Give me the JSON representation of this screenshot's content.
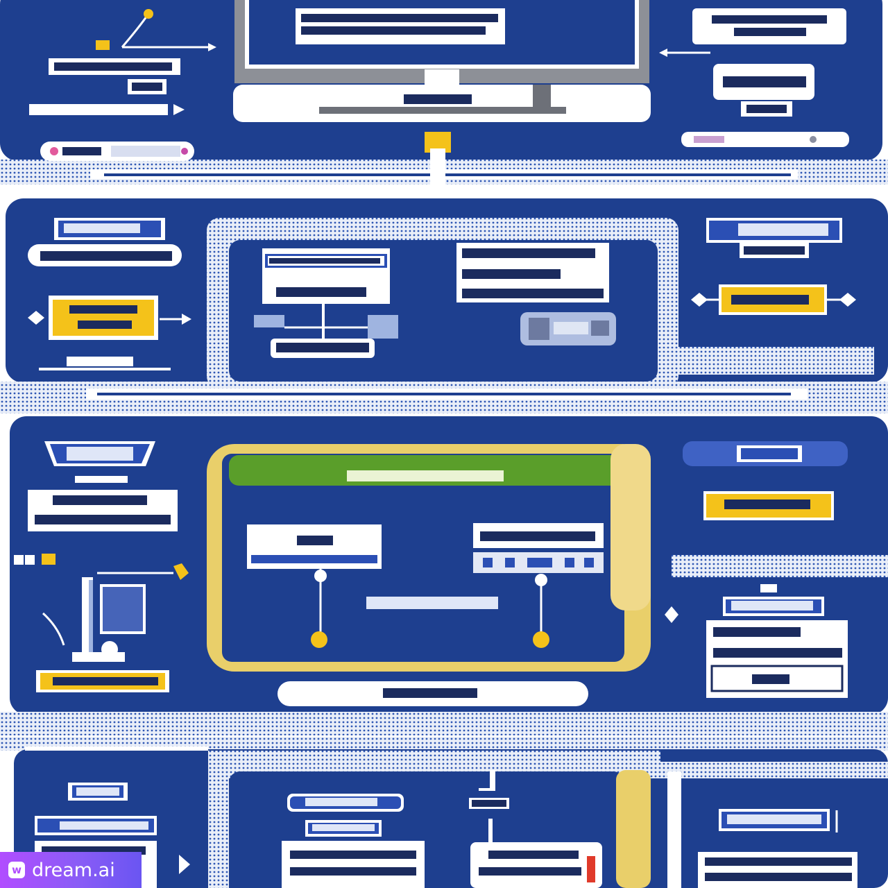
{
  "watermark": {
    "icon_glyph": "w",
    "text": "dream.ai"
  },
  "colors": {
    "panel_navy": "#1e3f8f",
    "frame_light": "#e7ecf6",
    "accent_yellow": "#f4c21a",
    "accent_gold": "#e9cf6a",
    "accent_green": "#5a9e2a",
    "label_white": "#ffffff"
  }
}
